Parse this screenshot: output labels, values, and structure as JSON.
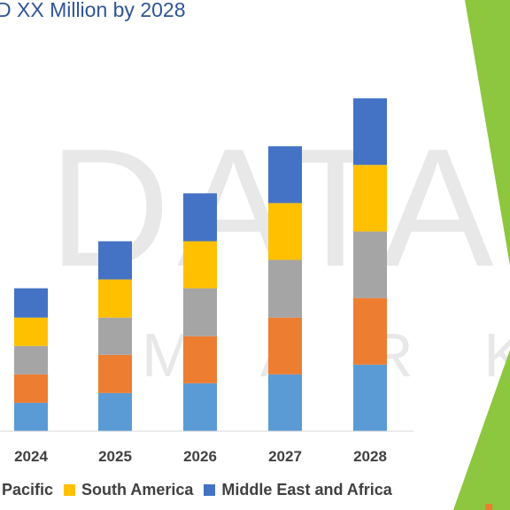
{
  "title": "D XX Million by 2028",
  "chart_data": {
    "type": "bar",
    "stacked": true,
    "categories": [
      "2024",
      "2025",
      "2026",
      "2027",
      "2028"
    ],
    "series": [
      {
        "name": "",
        "color": "#5b9bd5",
        "values": [
          32,
          43,
          54,
          64,
          75
        ]
      },
      {
        "name": "",
        "color": "#ed7d31",
        "values": [
          32,
          43,
          53,
          64,
          75
        ]
      },
      {
        "name": "",
        "color": "#a5a5a5",
        "values": [
          32,
          42,
          54,
          65,
          75
        ]
      },
      {
        "name": "South America",
        "color": "#ffc000",
        "values": [
          32,
          43,
          53,
          64,
          75
        ]
      },
      {
        "name": "Middle East and Africa",
        "color": "#4472c4",
        "values": [
          33,
          43,
          54,
          64,
          75
        ]
      }
    ],
    "legend_partial_label": "ia Pacific",
    "legend_partial_color": "#a5a5a5",
    "ylim": [
      0,
      400
    ],
    "grid": false,
    "legend_position": "bottom"
  },
  "watermark": {
    "line1": "DATA BR",
    "line2": "M A R K E T R E"
  },
  "colors": {
    "title": "#2f5597",
    "accent_green": "#8dc63f"
  }
}
